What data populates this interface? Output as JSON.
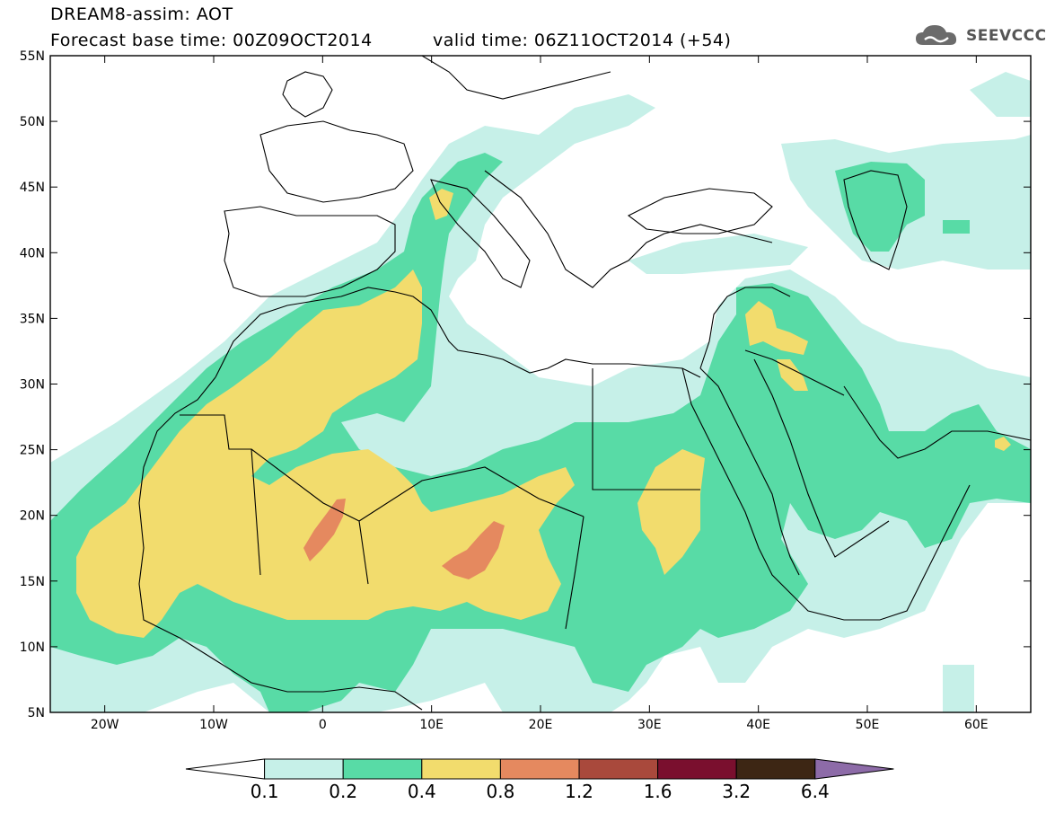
{
  "header": {
    "title": "DREAM8-assim: AOT",
    "base_time": "Forecast base time: 00Z09OCT2014",
    "valid_time": "valid time: 06Z11OCT2014 (+54)",
    "logo_text": "SEEVCCC"
  },
  "map": {
    "lat_labels": [
      "55N",
      "50N",
      "45N",
      "40N",
      "35N",
      "30N",
      "25N",
      "20N",
      "15N",
      "10N",
      "5N"
    ],
    "lon_labels": [
      "20W",
      "10W",
      "0",
      "10E",
      "20E",
      "30E",
      "40E",
      "50E",
      "60E"
    ],
    "extent": {
      "lon_min": -25,
      "lon_max": 65,
      "lat_min": 5,
      "lat_max": 55
    }
  },
  "colorbar": {
    "labels": [
      "0.1",
      "0.2",
      "0.4",
      "0.8",
      "1.2",
      "1.6",
      "3.2",
      "6.4"
    ],
    "colors": [
      "#ffffff",
      "#c6f0e8",
      "#58dba6",
      "#f2dc6d",
      "#e5895f",
      "#a9493c",
      "#7a0f2e",
      "#3d2614",
      "#8d6ba8"
    ]
  },
  "levels": {
    "c1": "#c6f0e8",
    "c2": "#58dba6",
    "c3": "#f2dc6d",
    "c4": "#e5895f"
  }
}
